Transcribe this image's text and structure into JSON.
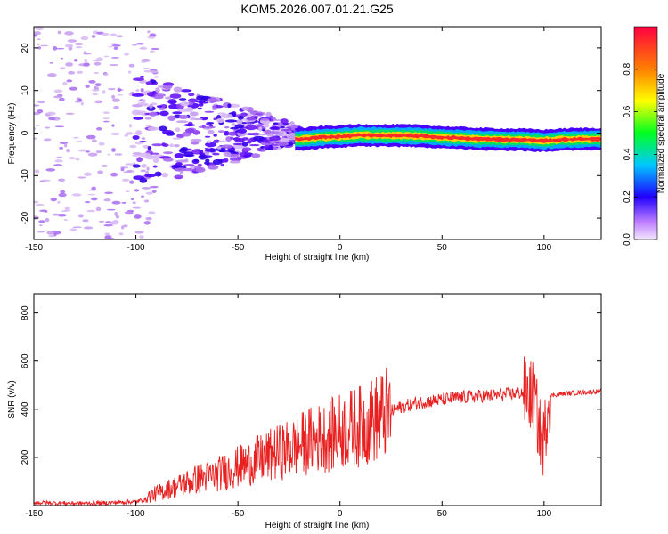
{
  "title": "KOM5.2026.007.01.21.G25",
  "colors": {
    "snr_line": "#e82020",
    "axis": "#000000"
  },
  "chart_data": [
    {
      "type": "heatmap",
      "xlabel": "Height of straight line (km)",
      "ylabel": "Frequency (Hz)",
      "xlim": [
        -150,
        128
      ],
      "ylim": [
        -25,
        25
      ],
      "x_ticks": [
        "-150",
        "-100",
        "-50",
        "0",
        "50",
        "100"
      ],
      "y_ticks": [
        "-20",
        "-10",
        "0",
        "10",
        "20"
      ],
      "colorbar": {
        "label": "Normalized spectral amplitude",
        "range": [
          0,
          1
        ],
        "ticks": [
          "0.0",
          "0.2",
          "0.4",
          "0.6",
          "0.8"
        ]
      },
      "ridge": {
        "x": [
          -20,
          -10,
          0,
          10,
          20,
          30,
          40,
          50,
          60,
          70,
          80,
          90,
          100,
          110,
          120,
          128
        ],
        "y": [
          -1.5,
          -1.0,
          -0.8,
          -0.5,
          -0.6,
          -0.6,
          -0.7,
          -1.0,
          -1.2,
          -1.4,
          -1.5,
          -1.6,
          -1.8,
          -1.5,
          -1.4,
          -1.4
        ]
      }
    },
    {
      "type": "line",
      "xlabel": "Height of straight line (km)",
      "ylabel": "SNR (v/v)",
      "xlim": [
        -150,
        128
      ],
      "ylim": [
        0,
        880
      ],
      "x_ticks": [
        "-150",
        "-100",
        "-50",
        "0",
        "50",
        "100"
      ],
      "y_ticks": [
        "200",
        "400",
        "600",
        "800"
      ],
      "series": [
        {
          "x": [
            -150,
            -140,
            -130,
            -120,
            -110,
            -100,
            -90,
            -80,
            -70,
            -60,
            -50,
            -40,
            -30,
            -20,
            -15,
            -10,
            -5,
            0,
            10,
            20,
            30,
            40,
            50,
            60,
            70,
            80,
            90,
            95,
            98,
            100,
            102,
            105,
            110,
            120,
            128
          ],
          "values": [
            15,
            12,
            10,
            12,
            15,
            20,
            50,
            80,
            110,
            130,
            160,
            190,
            220,
            250,
            270,
            280,
            290,
            310,
            330,
            370,
            410,
            430,
            440,
            450,
            455,
            460,
            470,
            450,
            300,
            260,
            450,
            460,
            465,
            470,
            475
          ]
        }
      ]
    }
  ]
}
